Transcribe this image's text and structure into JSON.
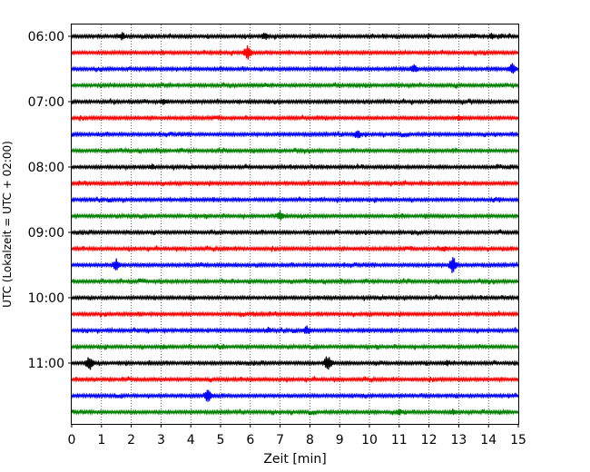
{
  "chart_data": {
    "type": "line",
    "title": "",
    "xlabel": "Zeit  [min]",
    "ylabel": "UTC (Lokalzeit = UTC + 02:00)",
    "xlim": [
      0,
      15
    ],
    "x_ticks": [
      0,
      1,
      2,
      3,
      4,
      5,
      6,
      7,
      8,
      9,
      10,
      11,
      12,
      13,
      14,
      15
    ],
    "x_tick_labels": [
      "0",
      "1",
      "2",
      "3",
      "4",
      "5",
      "6",
      "7",
      "8",
      "9",
      "10",
      "11",
      "12",
      "13",
      "14",
      "15"
    ],
    "y_tick_labels": [
      "06:00",
      "07:00",
      "08:00",
      "09:00",
      "10:00",
      "11:00"
    ],
    "vertical_grid": "dotted",
    "colors": [
      "#000000",
      "#ff0000",
      "#0000ff",
      "#008000"
    ],
    "traces": [
      {
        "start": "06:00",
        "color": "#000000",
        "events": [
          {
            "t": 1.7,
            "amp": 5
          },
          {
            "t": 6.5,
            "amp": 5
          },
          {
            "t": 13.5,
            "amp": 4
          },
          {
            "t": 14.1,
            "amp": 4
          }
        ]
      },
      {
        "start": "06:15",
        "color": "#ff0000",
        "events": [
          {
            "t": 5.9,
            "amp": 9
          }
        ]
      },
      {
        "start": "06:30",
        "color": "#0000ff",
        "events": [
          {
            "t": 11.5,
            "amp": 6
          },
          {
            "t": 14.8,
            "amp": 7
          }
        ]
      },
      {
        "start": "06:45",
        "color": "#008000",
        "events": [
          {
            "t": 6.5,
            "amp": 3
          }
        ]
      },
      {
        "start": "07:00",
        "color": "#000000",
        "events": [
          {
            "t": 3.1,
            "amp": 5
          }
        ]
      },
      {
        "start": "07:15",
        "color": "#ff0000",
        "events": [
          {
            "t": 13.0,
            "amp": 4
          }
        ]
      },
      {
        "start": "07:30",
        "color": "#0000ff",
        "events": [
          {
            "t": 9.6,
            "amp": 6
          }
        ]
      },
      {
        "start": "07:45",
        "color": "#008000",
        "events": []
      },
      {
        "start": "08:00",
        "color": "#000000",
        "events": [
          {
            "t": 2.7,
            "amp": 4
          }
        ]
      },
      {
        "start": "08:15",
        "color": "#ff0000",
        "events": []
      },
      {
        "start": "08:30",
        "color": "#0000ff",
        "events": []
      },
      {
        "start": "08:45",
        "color": "#008000",
        "events": [
          {
            "t": 7.0,
            "amp": 6
          }
        ]
      },
      {
        "start": "09:00",
        "color": "#000000",
        "events": []
      },
      {
        "start": "09:15",
        "color": "#ff0000",
        "events": [
          {
            "t": 12.5,
            "amp": 4
          }
        ]
      },
      {
        "start": "09:30",
        "color": "#0000ff",
        "events": [
          {
            "t": 1.5,
            "amp": 8
          },
          {
            "t": 12.8,
            "amp": 10
          }
        ]
      },
      {
        "start": "09:45",
        "color": "#008000",
        "events": []
      },
      {
        "start": "10:00",
        "color": "#000000",
        "events": []
      },
      {
        "start": "10:15",
        "color": "#ff0000",
        "events": []
      },
      {
        "start": "10:30",
        "color": "#0000ff",
        "events": [
          {
            "t": 6.6,
            "amp": 4
          },
          {
            "t": 7.9,
            "amp": 6
          }
        ]
      },
      {
        "start": "10:45",
        "color": "#008000",
        "events": [
          {
            "t": 3.1,
            "amp": 4
          }
        ]
      },
      {
        "start": "11:00",
        "color": "#000000",
        "events": [
          {
            "t": 0.6,
            "amp": 9
          },
          {
            "t": 8.6,
            "amp": 10
          },
          {
            "t": 12.6,
            "amp": 4
          }
        ]
      },
      {
        "start": "11:15",
        "color": "#ff0000",
        "events": []
      },
      {
        "start": "11:30",
        "color": "#0000ff",
        "events": [
          {
            "t": 4.6,
            "amp": 9
          }
        ]
      },
      {
        "start": "11:45",
        "color": "#008000",
        "events": [
          {
            "t": 11.0,
            "amp": 4
          },
          {
            "t": 12.8,
            "amp": 4
          }
        ]
      }
    ]
  }
}
